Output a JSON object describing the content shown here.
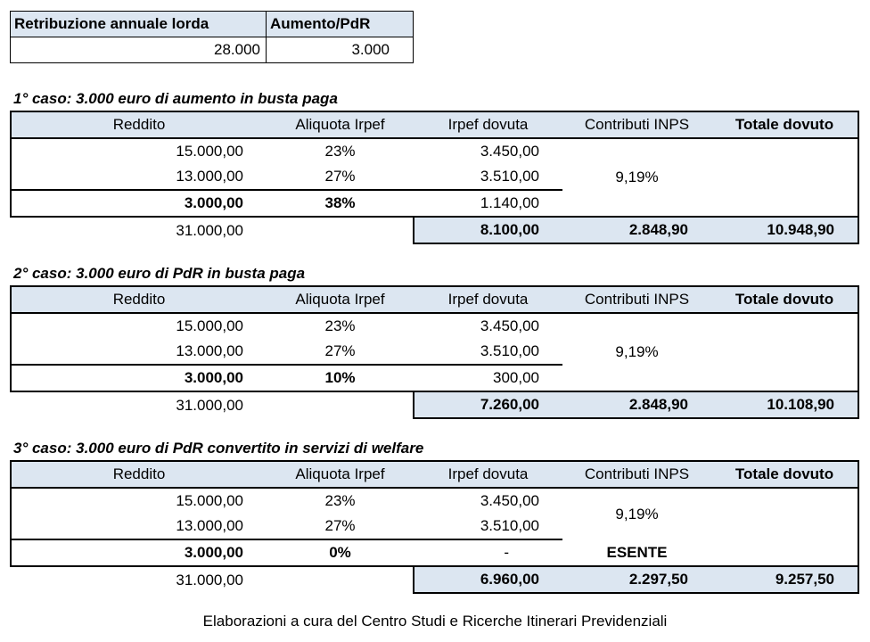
{
  "top": {
    "col1_header": "Retribuzione annuale lorda",
    "col2_header": "Aumento/PdR",
    "col1_value": "28.000",
    "col2_value": "3.000"
  },
  "headers": {
    "reddito": "Reddito",
    "aliquota": "Aliquota Irpef",
    "irpef": "Irpef dovuta",
    "inps": "Contributi INPS",
    "totale": "Totale dovuto"
  },
  "cases": [
    {
      "title": "1° caso: 3.000 euro di aumento in busta paga",
      "rows": [
        {
          "reddito": "15.000,00",
          "aliquota": "23%",
          "irpef": "3.450,00"
        },
        {
          "reddito": "13.000,00",
          "aliquota": "27%",
          "irpef": "3.510,00"
        },
        {
          "reddito": "3.000,00",
          "aliquota": "38%",
          "irpef": "1.140,00"
        }
      ],
      "inps_rate": "9,19%",
      "inps_third": "",
      "total_reddito": "31.000,00",
      "total_irpef": "8.100,00",
      "total_inps": "2.848,90",
      "total_dovuto": "10.948,90"
    },
    {
      "title": "2° caso: 3.000 euro di PdR in busta paga",
      "rows": [
        {
          "reddito": "15.000,00",
          "aliquota": "23%",
          "irpef": "3.450,00"
        },
        {
          "reddito": "13.000,00",
          "aliquota": "27%",
          "irpef": "3.510,00"
        },
        {
          "reddito": "3.000,00",
          "aliquota": "10%",
          "irpef": "300,00"
        }
      ],
      "inps_rate": "9,19%",
      "inps_third": "",
      "total_reddito": "31.000,00",
      "total_irpef": "7.260,00",
      "total_inps": "2.848,90",
      "total_dovuto": "10.108,90"
    },
    {
      "title": "3° caso: 3.000 euro di PdR convertito in servizi di welfare",
      "rows": [
        {
          "reddito": "15.000,00",
          "aliquota": "23%",
          "irpef": "3.450,00"
        },
        {
          "reddito": "13.000,00",
          "aliquota": "27%",
          "irpef": "3.510,00"
        },
        {
          "reddito": "3.000,00",
          "aliquota": "0%",
          "irpef": "-"
        }
      ],
      "inps_rate": "9,19%",
      "inps_third": "ESENTE",
      "total_reddito": "31.000,00",
      "total_irpef": "6.960,00",
      "total_inps": "2.297,50",
      "total_dovuto": "9.257,50"
    }
  ],
  "footer": "Elaborazioni a cura del Centro Studi e Ricerche Itinerari Previdenziali"
}
